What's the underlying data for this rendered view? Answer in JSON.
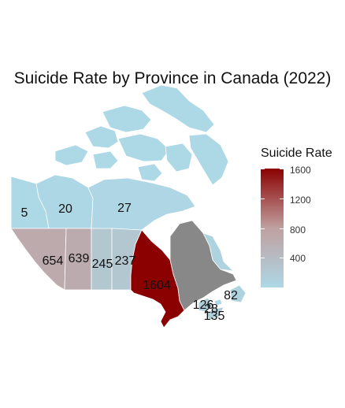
{
  "title": "Suicide Rate by Province in Canada (2022)",
  "legend": {
    "title": "Suicide Rate",
    "min": 0,
    "max": 1604,
    "low_color": "#add8e6",
    "mid_color": "#c0a0a0",
    "high_color": "#8b0000",
    "ticks": [
      "1600",
      "1200",
      "800",
      "400"
    ]
  },
  "colors": {
    "no_data": "#888888",
    "border": "#ffffff"
  },
  "regions": [
    {
      "name": "Yukon",
      "value": 5,
      "label": "5"
    },
    {
      "name": "Northwest Territories",
      "value": 20,
      "label": "20"
    },
    {
      "name": "Nunavut",
      "value": 27,
      "label": "27"
    },
    {
      "name": "British Columbia",
      "value": 654,
      "label": "654"
    },
    {
      "name": "Alberta",
      "value": 639,
      "label": "639"
    },
    {
      "name": "Saskatchewan",
      "value": 245,
      "label": "245"
    },
    {
      "name": "Manitoba",
      "value": 237,
      "label": "237"
    },
    {
      "name": "Ontario",
      "value": 1604,
      "label": "1604"
    },
    {
      "name": "Newfoundland and Labrador",
      "value": 82,
      "label": "82"
    },
    {
      "name": "New Brunswick",
      "value": 126,
      "label": "126"
    },
    {
      "name": "Prince Edward Island",
      "value": 28,
      "label": "28"
    },
    {
      "name": "Nova Scotia",
      "value": 135,
      "label": "135"
    }
  ]
}
